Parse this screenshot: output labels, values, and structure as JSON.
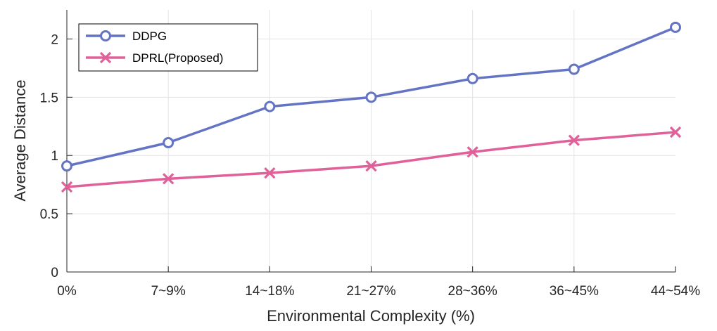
{
  "chart_data": {
    "type": "line",
    "title": "",
    "xlabel": "Environmental Complexity (%)",
    "ylabel": "Average Distance",
    "categories": [
      "0%",
      "7~9%",
      "14~18%",
      "21~27%",
      "28~36%",
      "36~45%",
      "44~54%"
    ],
    "ylim": [
      0,
      2.25
    ],
    "yticks": [
      0,
      0.5,
      1,
      1.5,
      2
    ],
    "ytick_labels": [
      "0",
      "0.5",
      "1",
      "1.5",
      "2"
    ],
    "grid": true,
    "legend_position": "top-left",
    "series": [
      {
        "name": "DDPG",
        "marker": "circle",
        "color": "#6474c4",
        "values": [
          0.91,
          1.11,
          1.42,
          1.5,
          1.66,
          1.74,
          2.1
        ]
      },
      {
        "name": "DPRL(Proposed)",
        "marker": "x",
        "color": "#e0609a",
        "values": [
          0.73,
          0.8,
          0.85,
          0.91,
          1.03,
          1.13,
          1.2
        ]
      }
    ]
  }
}
